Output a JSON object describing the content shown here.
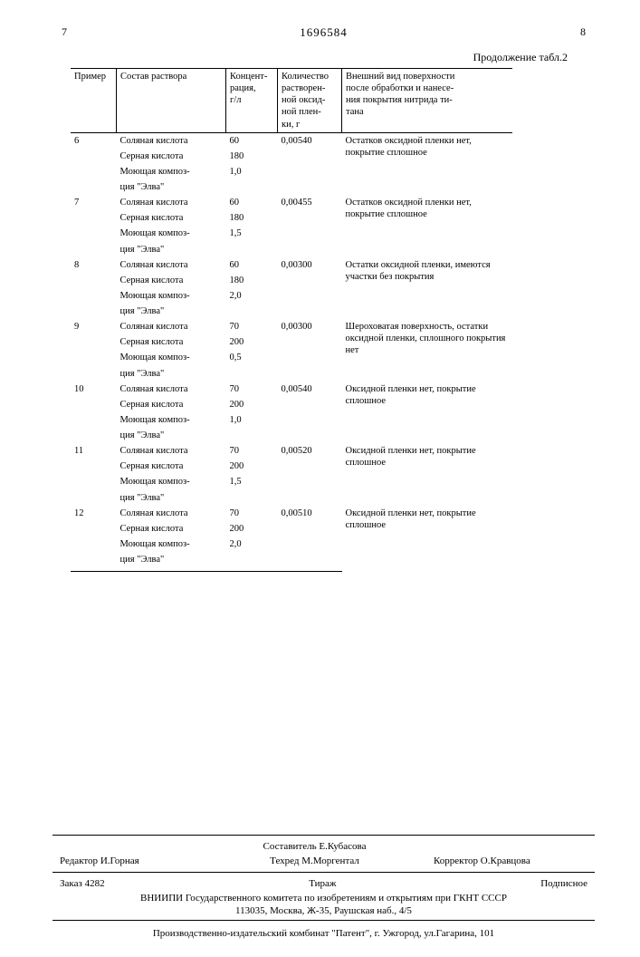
{
  "page_left_num": "7",
  "doc_num": "1696584",
  "page_right_num": "8",
  "continuation": "Продолжение табл.2",
  "headers": {
    "primer": "Пример",
    "sostav": "Состав раствора",
    "konc": "Концент-\nрация,\nг/л",
    "kol": "Количество\nрастворен-\nной оксид-\nной плен-\nки, г",
    "vid": "Внешний вид поверхности\nпосле обработки и нанесе-\nния покрытия нитрида ти-\nтана"
  },
  "comp": {
    "hcl": "Соляная кислота",
    "h2so4": "Серная кислота",
    "elva1": "Моющая композ-",
    "elva2": "ция \"Элва\""
  },
  "rows": [
    {
      "n": "6",
      "c1": "60",
      "c2": "180",
      "c3": "1,0",
      "kol": "0,00540",
      "vid": "Остатков оксидной пленки нет, покрытие сплошное"
    },
    {
      "n": "7",
      "c1": "60",
      "c2": "180",
      "c3": "1,5",
      "kol": "0,00455",
      "vid": "Остатков оксидной пленки нет, покрытие сплошное"
    },
    {
      "n": "8",
      "c1": "60",
      "c2": "180",
      "c3": "2,0",
      "kol": "0,00300",
      "vid": "Остатки оксидной пленки, имеются участки без покрытия"
    },
    {
      "n": "9",
      "c1": "70",
      "c2": "200",
      "c3": "0,5",
      "kol": "0,00300",
      "vid": "Шероховатая поверхность, остатки оксидной пленки, сплошного покрытия нет"
    },
    {
      "n": "10",
      "c1": "70",
      "c2": "200",
      "c3": "1,0",
      "kol": "0,00540",
      "vid": "Оксидной пленки нет, покрытие сплошное"
    },
    {
      "n": "11",
      "c1": "70",
      "c2": "200",
      "c3": "1,5",
      "kol": "0,00520",
      "vid": "Оксидной пленки нет, покрытие сплошное"
    },
    {
      "n": "12",
      "c1": "70",
      "c2": "200",
      "c3": "2,0",
      "kol": "0,00510",
      "vid": "Оксидной пленки нет, покрытие сплошное"
    }
  ],
  "footer": {
    "editor_label": "Редактор",
    "editor": "И.Горная",
    "compiler_label": "Составитель",
    "compiler": "Е.Кубасова",
    "tehred_label": "Техред",
    "tehred": "М.Моргентал",
    "corrector_label": "Корректор",
    "corrector": "О.Кравцова",
    "order_label": "Заказ",
    "order": "4282",
    "tirazh": "Тираж",
    "podpis": "Подписное",
    "inst": "ВНИИПИ Государственного комитета по изобретениям и открытиям при ГКНТ СССР",
    "addr": "113035, Москва, Ж-35, Раушская наб., 4/5",
    "prod": "Производственно-издательский комбинат \"Патент\", г. Ужгород, ул.Гагарина, 101"
  }
}
